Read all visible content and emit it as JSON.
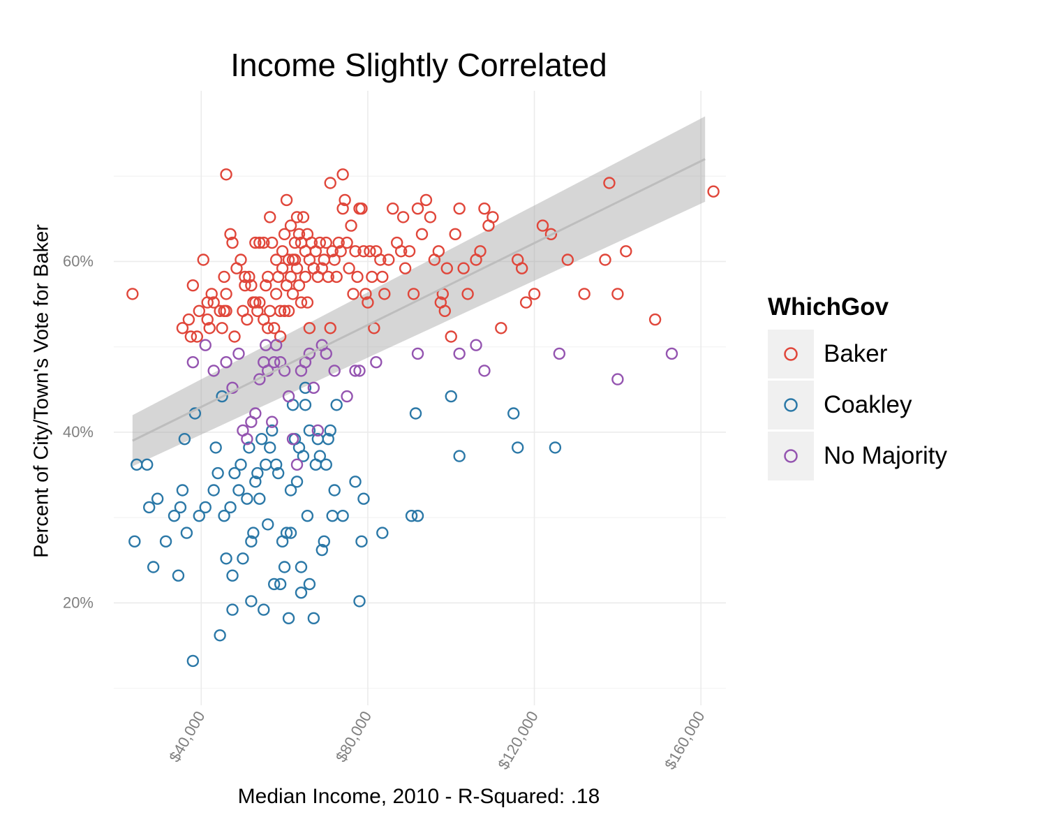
{
  "chart_data": {
    "type": "scatter",
    "title": "Income Slightly Correlated",
    "xlabel": "Median Income, 2010 - R-Squared: .18",
    "ylabel": "Percent of City/Town's Vote for Baker",
    "xlim": [
      19000,
      166000
    ],
    "ylim": [
      0.08,
      0.8
    ],
    "x_ticks": [
      40000,
      80000,
      120000,
      160000
    ],
    "x_tick_labels": [
      "$40,000",
      "$80,000",
      "$120,000",
      "$160,000"
    ],
    "y_ticks": [
      0.2,
      0.4,
      0.6
    ],
    "y_tick_labels": [
      "20%",
      "40%",
      "60%"
    ],
    "y_minor_gridlines": [
      0.1,
      0.3,
      0.5,
      0.7
    ],
    "grid": true,
    "legend": {
      "title": "WhichGov",
      "position": "right"
    },
    "trend": {
      "method": "linear",
      "x": [
        23500,
        161000
      ],
      "y": [
        0.39,
        0.72
      ],
      "ci_lower": [
        0.36,
        0.67
      ],
      "ci_upper": [
        0.42,
        0.77
      ]
    },
    "series": [
      {
        "name": "Baker",
        "color": "#e0463a",
        "points": [
          [
            23500,
            0.562
          ],
          [
            35500,
            0.522
          ],
          [
            37000,
            0.532
          ],
          [
            37500,
            0.512
          ],
          [
            38000,
            0.572
          ],
          [
            39000,
            0.512
          ],
          [
            39500,
            0.542
          ],
          [
            40500,
            0.602
          ],
          [
            41500,
            0.552
          ],
          [
            41500,
            0.532
          ],
          [
            42000,
            0.522
          ],
          [
            42500,
            0.562
          ],
          [
            43000,
            0.552
          ],
          [
            44500,
            0.542
          ],
          [
            45000,
            0.522
          ],
          [
            45500,
            0.582
          ],
          [
            45500,
            0.542
          ],
          [
            46000,
            0.702
          ],
          [
            46000,
            0.562
          ],
          [
            46000,
            0.542
          ],
          [
            47000,
            0.632
          ],
          [
            47500,
            0.622
          ],
          [
            48000,
            0.512
          ],
          [
            48500,
            0.592
          ],
          [
            49500,
            0.602
          ],
          [
            50000,
            0.542
          ],
          [
            50500,
            0.582
          ],
          [
            50500,
            0.572
          ],
          [
            51000,
            0.532
          ],
          [
            51500,
            0.582
          ],
          [
            52000,
            0.572
          ],
          [
            52500,
            0.552
          ],
          [
            53000,
            0.622
          ],
          [
            53000,
            0.552
          ],
          [
            53500,
            0.542
          ],
          [
            54000,
            0.622
          ],
          [
            54000,
            0.552
          ],
          [
            55000,
            0.622
          ],
          [
            55000,
            0.532
          ],
          [
            55500,
            0.572
          ],
          [
            56000,
            0.582
          ],
          [
            56000,
            0.522
          ],
          [
            56500,
            0.652
          ],
          [
            56500,
            0.542
          ],
          [
            57000,
            0.622
          ],
          [
            57500,
            0.522
          ],
          [
            58000,
            0.602
          ],
          [
            58000,
            0.562
          ],
          [
            58500,
            0.582
          ],
          [
            59000,
            0.542
          ],
          [
            59000,
            0.512
          ],
          [
            59500,
            0.612
          ],
          [
            59500,
            0.592
          ],
          [
            60000,
            0.632
          ],
          [
            60000,
            0.542
          ],
          [
            60500,
            0.672
          ],
          [
            60500,
            0.572
          ],
          [
            61000,
            0.602
          ],
          [
            61000,
            0.542
          ],
          [
            61500,
            0.642
          ],
          [
            61500,
            0.582
          ],
          [
            62000,
            0.602
          ],
          [
            62000,
            0.562
          ],
          [
            62500,
            0.622
          ],
          [
            62500,
            0.602
          ],
          [
            63000,
            0.652
          ],
          [
            63000,
            0.592
          ],
          [
            63500,
            0.632
          ],
          [
            63500,
            0.572
          ],
          [
            64000,
            0.622
          ],
          [
            64000,
            0.552
          ],
          [
            64500,
            0.652
          ],
          [
            65000,
            0.612
          ],
          [
            65000,
            0.582
          ],
          [
            65500,
            0.632
          ],
          [
            65500,
            0.552
          ],
          [
            66000,
            0.602
          ],
          [
            66000,
            0.522
          ],
          [
            66500,
            0.622
          ],
          [
            67000,
            0.592
          ],
          [
            67500,
            0.612
          ],
          [
            68000,
            0.582
          ],
          [
            68500,
            0.622
          ],
          [
            69000,
            0.592
          ],
          [
            69500,
            0.602
          ],
          [
            70000,
            0.622
          ],
          [
            70500,
            0.582
          ],
          [
            71000,
            0.692
          ],
          [
            71000,
            0.522
          ],
          [
            71500,
            0.612
          ],
          [
            72000,
            0.602
          ],
          [
            72500,
            0.582
          ],
          [
            73000,
            0.622
          ],
          [
            73500,
            0.612
          ],
          [
            74000,
            0.702
          ],
          [
            74000,
            0.662
          ],
          [
            74500,
            0.672
          ],
          [
            75000,
            0.622
          ],
          [
            75500,
            0.592
          ],
          [
            76000,
            0.642
          ],
          [
            76500,
            0.562
          ],
          [
            77000,
            0.612
          ],
          [
            77500,
            0.582
          ],
          [
            78000,
            0.662
          ],
          [
            78500,
            0.662
          ],
          [
            79000,
            0.612
          ],
          [
            79500,
            0.562
          ],
          [
            80000,
            0.552
          ],
          [
            80500,
            0.612
          ],
          [
            81000,
            0.582
          ],
          [
            81500,
            0.522
          ],
          [
            82000,
            0.612
          ],
          [
            83000,
            0.602
          ],
          [
            83500,
            0.582
          ],
          [
            84000,
            0.562
          ],
          [
            85000,
            0.602
          ],
          [
            86000,
            0.662
          ],
          [
            87000,
            0.622
          ],
          [
            88000,
            0.612
          ],
          [
            88500,
            0.652
          ],
          [
            89000,
            0.592
          ],
          [
            90000,
            0.612
          ],
          [
            91000,
            0.562
          ],
          [
            92000,
            0.662
          ],
          [
            93000,
            0.632
          ],
          [
            94000,
            0.672
          ],
          [
            95000,
            0.652
          ],
          [
            96000,
            0.602
          ],
          [
            97000,
            0.612
          ],
          [
            97500,
            0.552
          ],
          [
            98000,
            0.562
          ],
          [
            98500,
            0.542
          ],
          [
            99000,
            0.592
          ],
          [
            100000,
            0.512
          ],
          [
            101000,
            0.632
          ],
          [
            102000,
            0.662
          ],
          [
            103000,
            0.592
          ],
          [
            104000,
            0.562
          ],
          [
            106000,
            0.602
          ],
          [
            107000,
            0.612
          ],
          [
            108000,
            0.662
          ],
          [
            109000,
            0.642
          ],
          [
            110000,
            0.652
          ],
          [
            112000,
            0.522
          ],
          [
            116000,
            0.602
          ],
          [
            117000,
            0.592
          ],
          [
            118000,
            0.552
          ],
          [
            120000,
            0.562
          ],
          [
            122000,
            0.642
          ],
          [
            124000,
            0.632
          ],
          [
            128000,
            0.602
          ],
          [
            132000,
            0.562
          ],
          [
            137000,
            0.602
          ],
          [
            138000,
            0.692
          ],
          [
            140000,
            0.562
          ],
          [
            142000,
            0.612
          ],
          [
            149000,
            0.532
          ],
          [
            163000,
            0.682
          ]
        ]
      },
      {
        "name": "Coakley",
        "color": "#2b78a7",
        "points": [
          [
            24000,
            0.272
          ],
          [
            24500,
            0.362
          ],
          [
            27000,
            0.362
          ],
          [
            27500,
            0.312
          ],
          [
            28500,
            0.242
          ],
          [
            29500,
            0.322
          ],
          [
            31500,
            0.272
          ],
          [
            33500,
            0.302
          ],
          [
            34500,
            0.232
          ],
          [
            35000,
            0.312
          ],
          [
            35500,
            0.332
          ],
          [
            36000,
            0.392
          ],
          [
            36500,
            0.282
          ],
          [
            38000,
            0.132
          ],
          [
            38500,
            0.422
          ],
          [
            39500,
            0.302
          ],
          [
            41000,
            0.312
          ],
          [
            43000,
            0.332
          ],
          [
            43500,
            0.382
          ],
          [
            44000,
            0.352
          ],
          [
            44500,
            0.162
          ],
          [
            45000,
            0.442
          ],
          [
            45500,
            0.302
          ],
          [
            46000,
            0.252
          ],
          [
            47000,
            0.312
          ],
          [
            47500,
            0.192
          ],
          [
            47500,
            0.232
          ],
          [
            48000,
            0.352
          ],
          [
            49000,
            0.332
          ],
          [
            49500,
            0.362
          ],
          [
            50000,
            0.252
          ],
          [
            51000,
            0.322
          ],
          [
            51500,
            0.382
          ],
          [
            52000,
            0.272
          ],
          [
            52000,
            0.202
          ],
          [
            53000,
            0.342
          ],
          [
            53500,
            0.352
          ],
          [
            54000,
            0.322
          ],
          [
            54500,
            0.392
          ],
          [
            55000,
            0.192
          ],
          [
            55500,
            0.362
          ],
          [
            56000,
            0.292
          ],
          [
            56500,
            0.382
          ],
          [
            57000,
            0.402
          ],
          [
            57500,
            0.222
          ],
          [
            58000,
            0.362
          ],
          [
            58500,
            0.352
          ],
          [
            59000,
            0.222
          ],
          [
            59500,
            0.272
          ],
          [
            60000,
            0.242
          ],
          [
            60500,
            0.282
          ],
          [
            61000,
            0.182
          ],
          [
            61500,
            0.332
          ],
          [
            62000,
            0.432
          ],
          [
            62500,
            0.392
          ],
          [
            63000,
            0.342
          ],
          [
            63500,
            0.382
          ],
          [
            64000,
            0.212
          ],
          [
            64500,
            0.372
          ],
          [
            65000,
            0.432
          ],
          [
            65500,
            0.302
          ],
          [
            66000,
            0.222
          ],
          [
            67000,
            0.182
          ],
          [
            67500,
            0.362
          ],
          [
            68000,
            0.392
          ],
          [
            69000,
            0.262
          ],
          [
            69500,
            0.272
          ],
          [
            70000,
            0.362
          ],
          [
            71000,
            0.402
          ],
          [
            71500,
            0.302
          ],
          [
            72000,
            0.332
          ],
          [
            72500,
            0.432
          ],
          [
            74000,
            0.302
          ],
          [
            77000,
            0.342
          ],
          [
            78000,
            0.202
          ],
          [
            78500,
            0.272
          ],
          [
            79000,
            0.322
          ],
          [
            83500,
            0.282
          ],
          [
            90500,
            0.302
          ],
          [
            91500,
            0.422
          ],
          [
            92000,
            0.302
          ],
          [
            100000,
            0.442
          ],
          [
            102000,
            0.372
          ],
          [
            115000,
            0.422
          ],
          [
            116000,
            0.382
          ],
          [
            125000,
            0.382
          ],
          [
            65000,
            0.452
          ],
          [
            66000,
            0.402
          ],
          [
            68500,
            0.372
          ],
          [
            70500,
            0.392
          ],
          [
            52500,
            0.282
          ],
          [
            61500,
            0.282
          ],
          [
            64000,
            0.242
          ]
        ]
      },
      {
        "name": "No Majority",
        "color": "#9454b0",
        "points": [
          [
            38000,
            0.482
          ],
          [
            41000,
            0.502
          ],
          [
            43000,
            0.472
          ],
          [
            46000,
            0.482
          ],
          [
            47500,
            0.452
          ],
          [
            49000,
            0.492
          ],
          [
            50000,
            0.402
          ],
          [
            51000,
            0.392
          ],
          [
            52000,
            0.412
          ],
          [
            53000,
            0.422
          ],
          [
            54000,
            0.462
          ],
          [
            55000,
            0.482
          ],
          [
            56000,
            0.472
          ],
          [
            57000,
            0.412
          ],
          [
            58000,
            0.502
          ],
          [
            59000,
            0.482
          ],
          [
            60000,
            0.472
          ],
          [
            61000,
            0.442
          ],
          [
            62000,
            0.392
          ],
          [
            63000,
            0.362
          ],
          [
            64000,
            0.472
          ],
          [
            65000,
            0.482
          ],
          [
            66000,
            0.492
          ],
          [
            67000,
            0.452
          ],
          [
            68000,
            0.402
          ],
          [
            69000,
            0.502
          ],
          [
            70000,
            0.492
          ],
          [
            72000,
            0.472
          ],
          [
            75000,
            0.442
          ],
          [
            77000,
            0.472
          ],
          [
            78000,
            0.472
          ],
          [
            82000,
            0.482
          ],
          [
            92000,
            0.492
          ],
          [
            102000,
            0.492
          ],
          [
            106000,
            0.502
          ],
          [
            108000,
            0.472
          ],
          [
            126000,
            0.492
          ],
          [
            140000,
            0.462
          ],
          [
            153000,
            0.492
          ],
          [
            55500,
            0.502
          ],
          [
            57500,
            0.482
          ]
        ]
      }
    ]
  }
}
